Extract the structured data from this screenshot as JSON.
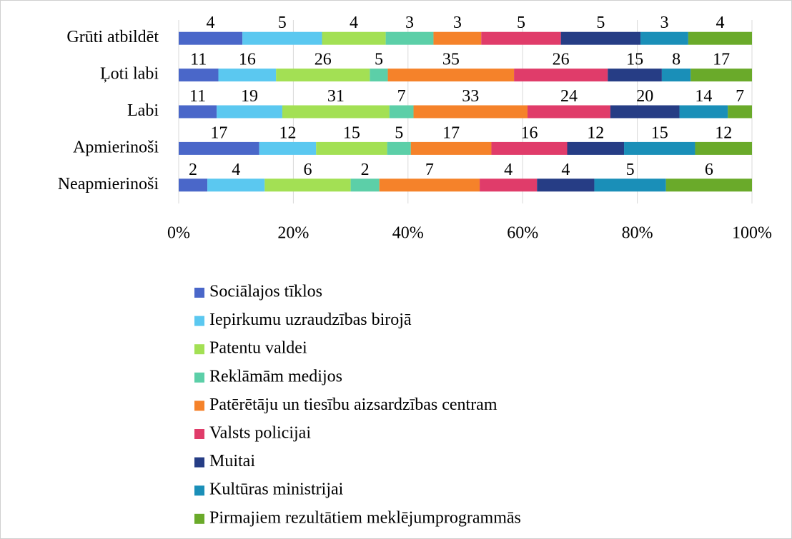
{
  "chart_data": {
    "type": "bar",
    "orientation": "horizontal",
    "stacked": "percent",
    "categories": [
      "Grūti atbildēt",
      "Ļoti labi",
      "Labi",
      "Apmierinoši",
      "Neapmierinoši"
    ],
    "series": [
      {
        "name": "Sociālajos tīklos",
        "color": "#4a67c9",
        "values": [
          4,
          11,
          11,
          17,
          2
        ]
      },
      {
        "name": "Iepirkumu uzraudzības birojā",
        "color": "#5bc8f0",
        "values": [
          5,
          16,
          19,
          12,
          4
        ]
      },
      {
        "name": "Patentu valdei",
        "color": "#a3e054",
        "values": [
          4,
          26,
          31,
          15,
          6
        ]
      },
      {
        "name": "Reklāmām medijos",
        "color": "#5ccfa8",
        "values": [
          3,
          5,
          7,
          5,
          2
        ]
      },
      {
        "name": "Patērētāju un tiesību aizsardzības centram",
        "color": "#f5822a",
        "values": [
          3,
          35,
          33,
          17,
          7
        ]
      },
      {
        "name": "Valsts policijai",
        "color": "#e03c6a",
        "values": [
          5,
          26,
          24,
          16,
          4
        ]
      },
      {
        "name": "Muitai",
        "color": "#263d85",
        "values": [
          5,
          15,
          20,
          12,
          4
        ]
      },
      {
        "name": "Kultūras ministrijai",
        "color": "#1a8fb8",
        "values": [
          3,
          8,
          14,
          15,
          5
        ]
      },
      {
        "name": "Pirmajiem rezultātiem meklējumprogrammās",
        "color": "#6aaa2a",
        "values": [
          4,
          17,
          7,
          12,
          6
        ]
      }
    ],
    "xlim": [
      0,
      100
    ],
    "xticks": [
      {
        "value": 0,
        "label": "0%"
      },
      {
        "value": 20,
        "label": "20%"
      },
      {
        "value": 40,
        "label": "40%"
      },
      {
        "value": 60,
        "label": "60%"
      },
      {
        "value": 80,
        "label": "80%"
      },
      {
        "value": 100,
        "label": "100%"
      }
    ],
    "grid": true,
    "legend": "bottom"
  }
}
